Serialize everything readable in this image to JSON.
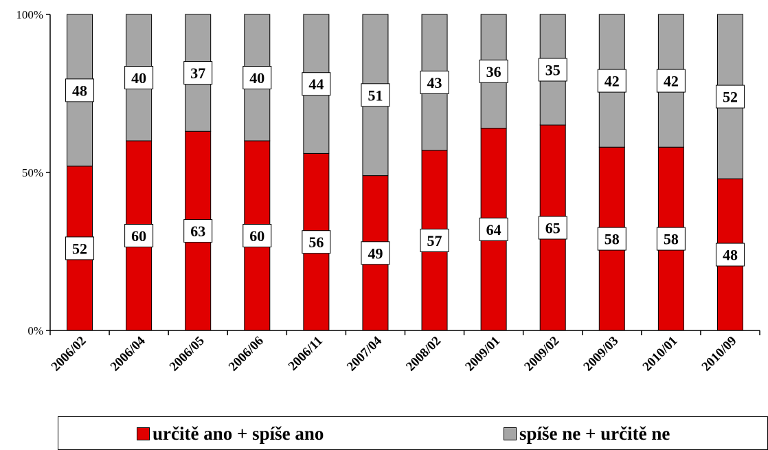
{
  "chart_data": {
    "type": "bar",
    "stacked": "percent",
    "categories": [
      "2006/02",
      "2006/04",
      "2006/05",
      "2006/06",
      "2006/11",
      "2007/04",
      "2008/02",
      "2009/01",
      "2009/02",
      "2009/03",
      "2010/01",
      "2010/09"
    ],
    "series": [
      {
        "name": "určitě ano + spíše ano",
        "values": [
          52,
          60,
          63,
          60,
          56,
          49,
          57,
          64,
          65,
          58,
          58,
          48
        ],
        "color": "#e00000"
      },
      {
        "name": "spíše ne + určitě ne",
        "values": [
          48,
          40,
          37,
          40,
          44,
          51,
          43,
          36,
          35,
          42,
          42,
          52
        ],
        "color": "#a6a6a6"
      }
    ],
    "yticks": [
      "0%",
      "50%",
      "100%"
    ],
    "ylim": [
      0,
      100
    ],
    "grid": false,
    "legend": "bottom"
  }
}
